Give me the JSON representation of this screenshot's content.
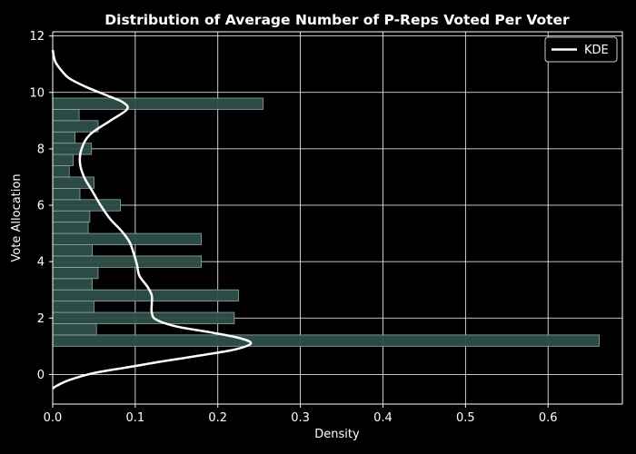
{
  "chart_data": {
    "type": "bar",
    "orientation": "horizontal",
    "title": "Distribution of Average Number of P-Reps Voted Per Voter",
    "xlabel": "Density",
    "ylabel": "Vote Allocation",
    "xlim": [
      0.0,
      0.69
    ],
    "ylim": [
      -1.05,
      12.15
    ],
    "xticks": [
      "0.0",
      "0.1",
      "0.2",
      "0.3",
      "0.4",
      "0.5",
      "0.6"
    ],
    "yticks": [
      "0",
      "2",
      "4",
      "6",
      "8",
      "10",
      "12"
    ],
    "grid": true,
    "legend_position": "top-right",
    "bar_color": "#2f4f4a",
    "kde_color": "#ffffff",
    "histogram": {
      "bins": [
        {
          "y0": 1.0,
          "y1": 1.4,
          "density": 0.662
        },
        {
          "y0": 1.4,
          "y1": 1.8,
          "density": 0.053
        },
        {
          "y0": 1.8,
          "y1": 2.2,
          "density": 0.22
        },
        {
          "y0": 2.2,
          "y1": 2.6,
          "density": 0.05
        },
        {
          "y0": 2.6,
          "y1": 3.0,
          "density": 0.225
        },
        {
          "y0": 3.0,
          "y1": 3.4,
          "density": 0.048
        },
        {
          "y0": 3.4,
          "y1": 3.8,
          "density": 0.055
        },
        {
          "y0": 3.8,
          "y1": 4.2,
          "density": 0.18
        },
        {
          "y0": 4.2,
          "y1": 4.6,
          "density": 0.048
        },
        {
          "y0": 4.6,
          "y1": 5.0,
          "density": 0.18
        },
        {
          "y0": 5.0,
          "y1": 5.4,
          "density": 0.043
        },
        {
          "y0": 5.4,
          "y1": 5.8,
          "density": 0.045
        },
        {
          "y0": 5.8,
          "y1": 6.2,
          "density": 0.082
        },
        {
          "y0": 6.2,
          "y1": 6.6,
          "density": 0.033
        },
        {
          "y0": 6.6,
          "y1": 7.0,
          "density": 0.05
        },
        {
          "y0": 7.0,
          "y1": 7.4,
          "density": 0.02
        },
        {
          "y0": 7.4,
          "y1": 7.8,
          "density": 0.025
        },
        {
          "y0": 7.8,
          "y1": 8.2,
          "density": 0.047
        },
        {
          "y0": 8.2,
          "y1": 8.6,
          "density": 0.027
        },
        {
          "y0": 8.6,
          "y1": 9.0,
          "density": 0.055
        },
        {
          "y0": 9.0,
          "y1": 9.4,
          "density": 0.032
        },
        {
          "y0": 9.4,
          "y1": 9.8,
          "density": 0.255
        }
      ]
    },
    "kde": {
      "name": "KDE",
      "points": [
        [
          0.0,
          -0.5
        ],
        [
          0.005,
          -0.4
        ],
        [
          0.02,
          -0.2
        ],
        [
          0.05,
          0.05
        ],
        [
          0.09,
          0.25
        ],
        [
          0.13,
          0.45
        ],
        [
          0.18,
          0.68
        ],
        [
          0.22,
          0.88
        ],
        [
          0.24,
          1.1
        ],
        [
          0.225,
          1.3
        ],
        [
          0.19,
          1.5
        ],
        [
          0.15,
          1.7
        ],
        [
          0.125,
          1.95
        ],
        [
          0.12,
          2.2
        ],
        [
          0.12,
          2.5
        ],
        [
          0.12,
          2.8
        ],
        [
          0.115,
          3.1
        ],
        [
          0.105,
          3.5
        ],
        [
          0.102,
          3.9
        ],
        [
          0.098,
          4.3
        ],
        [
          0.093,
          4.7
        ],
        [
          0.083,
          5.1
        ],
        [
          0.07,
          5.5
        ],
        [
          0.058,
          6.0
        ],
        [
          0.048,
          6.5
        ],
        [
          0.038,
          7.0
        ],
        [
          0.033,
          7.5
        ],
        [
          0.035,
          8.0
        ],
        [
          0.045,
          8.5
        ],
        [
          0.07,
          9.0
        ],
        [
          0.09,
          9.4
        ],
        [
          0.085,
          9.65
        ],
        [
          0.065,
          9.9
        ],
        [
          0.04,
          10.2
        ],
        [
          0.02,
          10.5
        ],
        [
          0.01,
          10.8
        ],
        [
          0.003,
          11.1
        ],
        [
          0.0,
          11.5
        ]
      ]
    }
  }
}
